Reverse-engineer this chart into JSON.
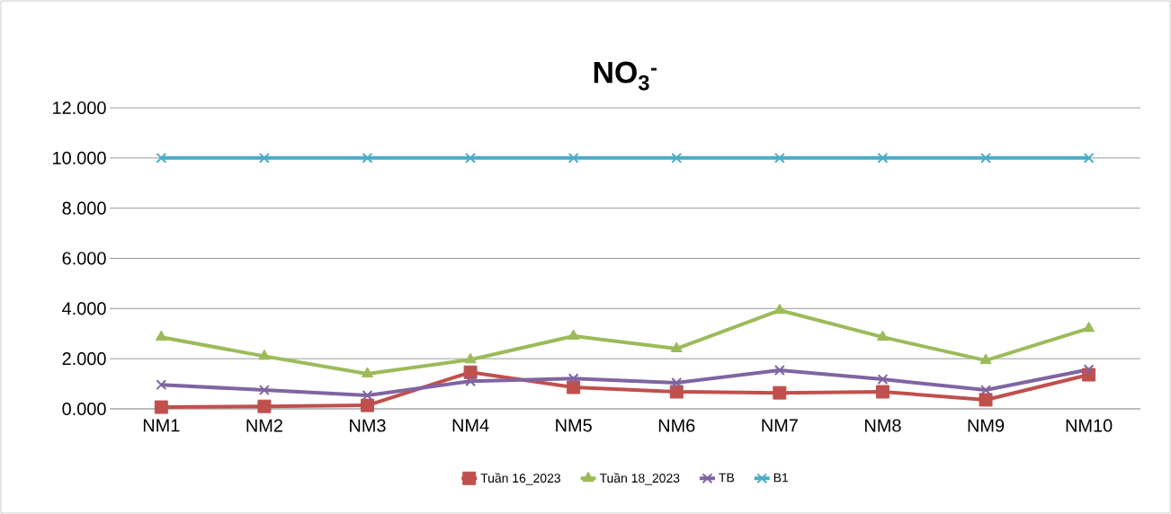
{
  "chart_data": {
    "type": "line",
    "title": "NO$_{3}$$^{-}$",
    "categories": [
      "NM1",
      "NM2",
      "NM3",
      "NM4",
      "NM5",
      "NM6",
      "NM7",
      "NM8",
      "NM9",
      "NM10"
    ],
    "series": [
      {
        "name": "Tuần 16_2023",
        "color": "#c0504d",
        "marker": "square",
        "values": [
          0.07,
          0.1,
          0.14,
          1.46,
          0.86,
          0.68,
          0.64,
          0.68,
          0.36,
          1.36
        ]
      },
      {
        "name": "Tuần 18_2023",
        "color": "#9bbb59",
        "marker": "triangle",
        "values": [
          2.86,
          2.1,
          1.4,
          1.96,
          2.9,
          2.4,
          3.93,
          2.86,
          1.93,
          3.21
        ]
      },
      {
        "name": "TB",
        "color": "#8064a2",
        "marker": "cross",
        "values": [
          0.96,
          0.75,
          0.54,
          1.1,
          1.21,
          1.04,
          1.54,
          1.18,
          0.75,
          1.57
        ]
      },
      {
        "name": "B1",
        "color": "#4bacc6",
        "marker": "cross",
        "values": [
          10,
          10,
          10,
          10,
          10,
          10,
          10,
          10,
          10,
          10
        ]
      }
    ],
    "ylim": [
      0,
      12
    ],
    "yticks": [
      {
        "value": 0,
        "label": "0.000"
      },
      {
        "value": 2,
        "label": "2.000"
      },
      {
        "value": 4,
        "label": "4.000"
      },
      {
        "value": 6,
        "label": "6.000"
      },
      {
        "value": 8,
        "label": "8.000"
      },
      {
        "value": 10,
        "label": "10.000"
      },
      {
        "value": 12,
        "label": "12.000"
      }
    ],
    "grid": "y",
    "legend": "bottom",
    "line_style": "solid"
  }
}
